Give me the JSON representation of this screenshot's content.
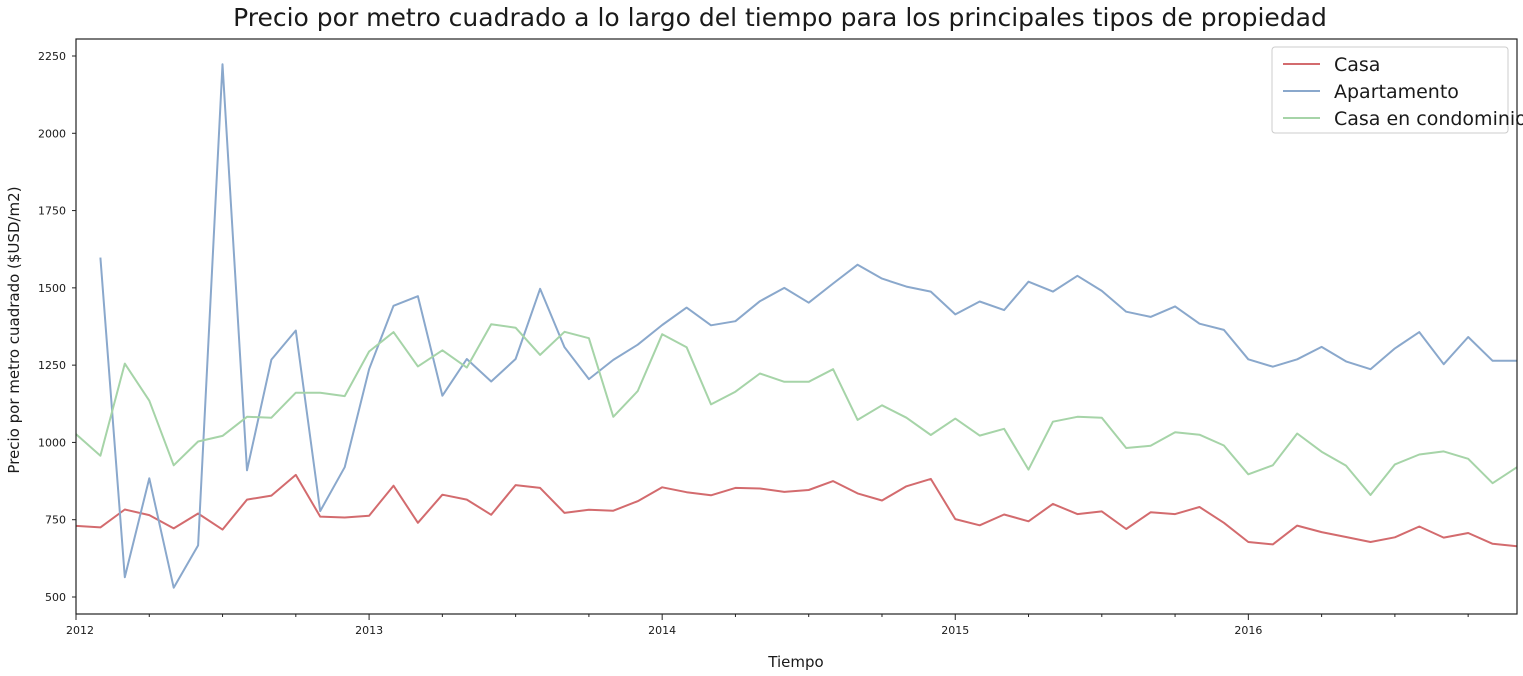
{
  "chart_data": {
    "type": "line",
    "title": "Precio por metro cuadrado a lo largo del tiempo para los principales tipos de propiedad",
    "xlabel": "Tiempo",
    "ylabel": "Precio por metro cuadrado ($USD/m2)",
    "x_start": "2012-01",
    "x_end": "2016-12",
    "x_ticks": [
      "2012",
      "2013",
      "2014",
      "2015",
      "2016"
    ],
    "ylim": [
      445,
      2305
    ],
    "y_ticks": [
      500,
      750,
      1000,
      1250,
      1500,
      1750,
      2000,
      2250
    ],
    "legend_position": "top-right",
    "grid": false,
    "series": [
      {
        "name": "Casa",
        "color": "#d36b6e",
        "start": "2012-01",
        "values": [
          730,
          725,
          783,
          765,
          722,
          770,
          718,
          815,
          828,
          895,
          760,
          757,
          763,
          860,
          740,
          831,
          815,
          766,
          862,
          853,
          772,
          782,
          779,
          810,
          855,
          839,
          829,
          853,
          851,
          840,
          846,
          875,
          835,
          812,
          858,
          882,
          752,
          732,
          767,
          745,
          801,
          768,
          777,
          720,
          774,
          768,
          791,
          740,
          678,
          670,
          731,
          710,
          694,
          678,
          693,
          728,
          692,
          707,
          672,
          664
        ]
      },
      {
        "name": "Apartamento",
        "color": "#8aa8cc",
        "start": "2012-02",
        "values": [
          1598,
          564,
          884,
          530,
          667,
          2223,
          910,
          1268,
          1362,
          778,
          920,
          1237,
          1442,
          1473,
          1151,
          1270,
          1197,
          1270,
          1497,
          1308,
          1205,
          1267,
          1316,
          1380,
          1436,
          1379,
          1392,
          1457,
          1500,
          1452,
          1514,
          1575,
          1530,
          1504,
          1488,
          1414,
          1456,
          1428,
          1520,
          1488,
          1539,
          1490,
          1423,
          1406,
          1440,
          1384,
          1364,
          1269,
          1245,
          1269,
          1309,
          1262,
          1237,
          1304,
          1357,
          1253,
          1341,
          1264,
          1264
        ]
      },
      {
        "name": "Casa en condominio",
        "color": "#a6d4a8",
        "start": "2012-01",
        "values": [
          1027,
          957,
          1255,
          1135,
          926,
          1003,
          1021,
          1083,
          1080,
          1161,
          1161,
          1150,
          1294,
          1357,
          1246,
          1298,
          1242,
          1382,
          1371,
          1283,
          1358,
          1337,
          1083,
          1166,
          1350,
          1308,
          1123,
          1164,
          1223,
          1196,
          1196,
          1237,
          1073,
          1120,
          1080,
          1024,
          1077,
          1022,
          1044,
          912,
          1067,
          1083,
          1080,
          982,
          989,
          1033,
          1025,
          990,
          897,
          926,
          1029,
          970,
          925,
          830,
          929,
          961,
          971,
          947,
          868,
          920
        ]
      }
    ]
  }
}
